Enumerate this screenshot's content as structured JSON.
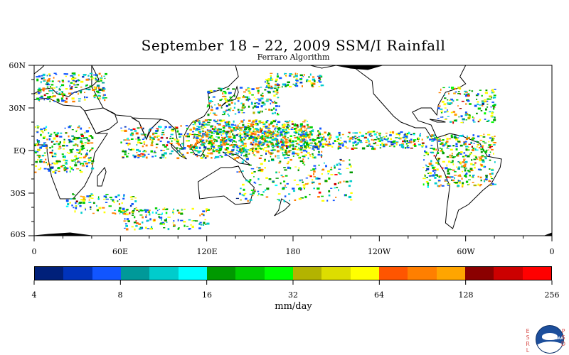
{
  "title": "September 18 – 22, 2009 SSM/I Rainfall",
  "subtitle": "Ferraro Algorithm",
  "latitude_labels": [
    "60N",
    "30N",
    "EQ",
    "30S",
    "60S"
  ],
  "latitude_values": [
    60,
    30,
    0,
    -30,
    -60
  ],
  "longitude_labels": [
    "0",
    "60E",
    "120E",
    "180",
    "120W",
    "60W",
    "0"
  ],
  "longitude_values": [
    0,
    60,
    120,
    180,
    240,
    300,
    360
  ],
  "map_extent": {
    "lon_min": 0,
    "lon_max": 360,
    "lat_min": -60,
    "lat_max": 60
  },
  "colorbar": {
    "units": "mm/day",
    "tick_labels": [
      "4",
      "8",
      "16",
      "32",
      "64",
      "128",
      "256"
    ],
    "colors": [
      "#00207a",
      "#0033bb",
      "#1155ff",
      "#009999",
      "#00cccc",
      "#00ffff",
      "#009900",
      "#00cc00",
      "#00ff00",
      "#b3b300",
      "#dddd00",
      "#ffff00",
      "#ff5500",
      "#ff7f00",
      "#ffa500",
      "#8b0000",
      "#cc0000",
      "#ff0000"
    ]
  },
  "rain_legend_colors_common": [
    "#00cc00",
    "#ffff00",
    "#00cccc",
    "#1155ff",
    "#ff7f00",
    "#009900"
  ],
  "logo": {
    "left_letters": [
      "E",
      "S",
      "R",
      "L"
    ],
    "right_letters": [
      "P",
      "S",
      "D"
    ],
    "text": "NOAA",
    "colors": {
      "ring": "#1d4f9c",
      "letters": "#d9534f"
    }
  },
  "land_color": "#000000",
  "coast_color": "#000000"
}
